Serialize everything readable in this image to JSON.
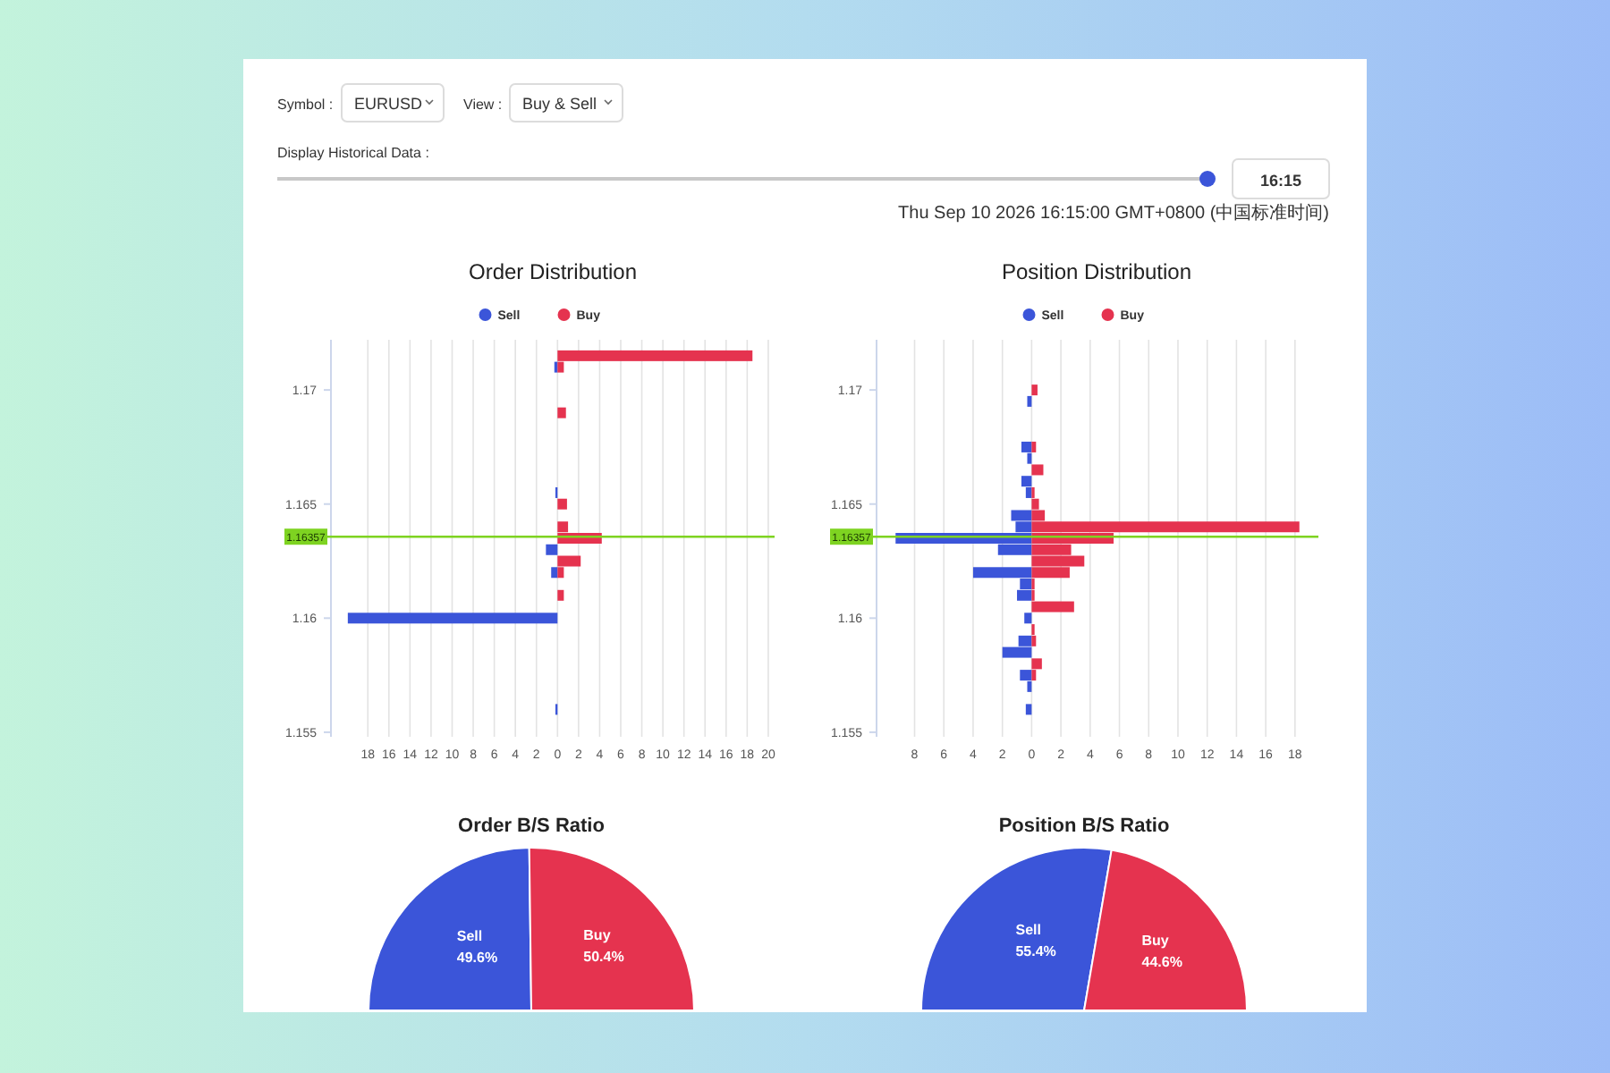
{
  "chart_data": [
    {
      "type": "other",
      "annotations": [
        "Symbol :",
        "EURUSD",
        "View :",
        "Buy & Sell",
        "Display Historical Data :",
        "16:15",
        "Thu Sep 10 2026 16:15:00 GMT+0800 (中国标准时间)"
      ]
    },
    {
      "type": "bar",
      "orientation": "horizontal",
      "title": "Order Distribution",
      "legend": "top",
      "grid": "x",
      "series": [
        {
          "name": "Sell",
          "color": "#3b55d9",
          "x": [
            1.171,
            1.1655,
            1.163,
            1.162,
            1.16,
            1.156
          ],
          "values": [
            -0.3,
            -0.2,
            -1.1,
            -0.6,
            -19.9,
            -0.2
          ]
        },
        {
          "name": "Buy",
          "color": "#e5334f",
          "x": [
            1.1715,
            1.171,
            1.169,
            1.165,
            1.164,
            1.1635,
            1.1625,
            1.162,
            1.161
          ],
          "values": [
            18.5,
            0.6,
            0.8,
            0.9,
            1.0,
            4.2,
            2.2,
            0.6,
            0.6
          ]
        }
      ],
      "xlim": [
        -21.5,
        20.6
      ],
      "xticks": [
        {
          "value": -18,
          "label": "18"
        },
        {
          "value": -16,
          "label": "16"
        },
        {
          "value": -14,
          "label": "14"
        },
        {
          "value": -12,
          "label": "12"
        },
        {
          "value": -10,
          "label": "10"
        },
        {
          "value": -8,
          "label": "8"
        },
        {
          "value": -6,
          "label": "6"
        },
        {
          "value": -4,
          "label": "4"
        },
        {
          "value": -2,
          "label": "2"
        },
        0,
        2,
        4,
        6,
        8,
        10,
        12,
        14,
        16,
        18,
        20
      ],
      "ylim": [
        1.1548,
        1.1722
      ],
      "yticks": [
        1.155,
        1.16,
        1.165,
        1.17
      ],
      "ref_lines": [
        {
          "axis": "y",
          "value": 1.16357,
          "label": "1.16357",
          "color": "#7ed321"
        }
      ]
    },
    {
      "type": "bar",
      "orientation": "horizontal",
      "title": "Position Distribution",
      "legend": "top",
      "grid": "x",
      "series": [
        {
          "name": "Sell",
          "color": "#3b55d9",
          "x": [
            1.1695,
            1.1675,
            1.167,
            1.166,
            1.1655,
            1.1645,
            1.164,
            1.1635,
            1.163,
            1.162,
            1.1615,
            1.161,
            1.16,
            1.159,
            1.1585,
            1.1575,
            1.157,
            1.156
          ],
          "values": [
            -0.3,
            -0.7,
            -0.3,
            -0.7,
            -0.4,
            -1.4,
            -1.1,
            -9.3,
            -2.3,
            -4.0,
            -0.8,
            -1.0,
            -0.5,
            -0.9,
            -2.0,
            -0.8,
            -0.3,
            -0.4
          ]
        },
        {
          "name": "Buy",
          "color": "#e5334f",
          "x": [
            1.17,
            1.1675,
            1.1665,
            1.1655,
            1.165,
            1.1645,
            1.164,
            1.1635,
            1.163,
            1.1625,
            1.162,
            1.1615,
            1.161,
            1.1605,
            1.1595,
            1.159,
            1.158,
            1.1575
          ],
          "values": [
            0.4,
            0.3,
            0.8,
            0.2,
            0.5,
            0.9,
            18.3,
            5.6,
            2.7,
            3.6,
            2.6,
            0.2,
            0.2,
            2.9,
            0.2,
            0.3,
            0.7,
            0.3
          ]
        }
      ],
      "xlim": [
        -10.6,
        19.6
      ],
      "xticks": [
        {
          "value": -8,
          "label": "8"
        },
        {
          "value": -6,
          "label": "6"
        },
        {
          "value": -4,
          "label": "4"
        },
        {
          "value": -2,
          "label": "2"
        },
        0,
        2,
        4,
        6,
        8,
        10,
        12,
        14,
        16,
        18
      ],
      "ylim": [
        1.1548,
        1.1722
      ],
      "yticks": [
        1.155,
        1.16,
        1.165,
        1.17
      ],
      "ref_lines": [
        {
          "axis": "y",
          "value": 1.16357,
          "label": "1.16357",
          "color": "#7ed321"
        }
      ]
    },
    {
      "type": "pie",
      "title": "Order B/S Ratio",
      "categories": [
        "Sell",
        "Buy"
      ],
      "values": [
        49.6,
        50.4
      ],
      "colors": [
        "#3b55d9",
        "#e5334f"
      ],
      "value_labels": [
        "49.6%",
        "50.4%"
      ]
    },
    {
      "type": "pie",
      "title": "Position B/S Ratio",
      "categories": [
        "Sell",
        "Buy"
      ],
      "values": [
        55.4,
        44.6
      ],
      "colors": [
        "#3b55d9",
        "#e5334f"
      ],
      "value_labels": [
        "55.4%",
        "44.6%"
      ]
    }
  ]
}
